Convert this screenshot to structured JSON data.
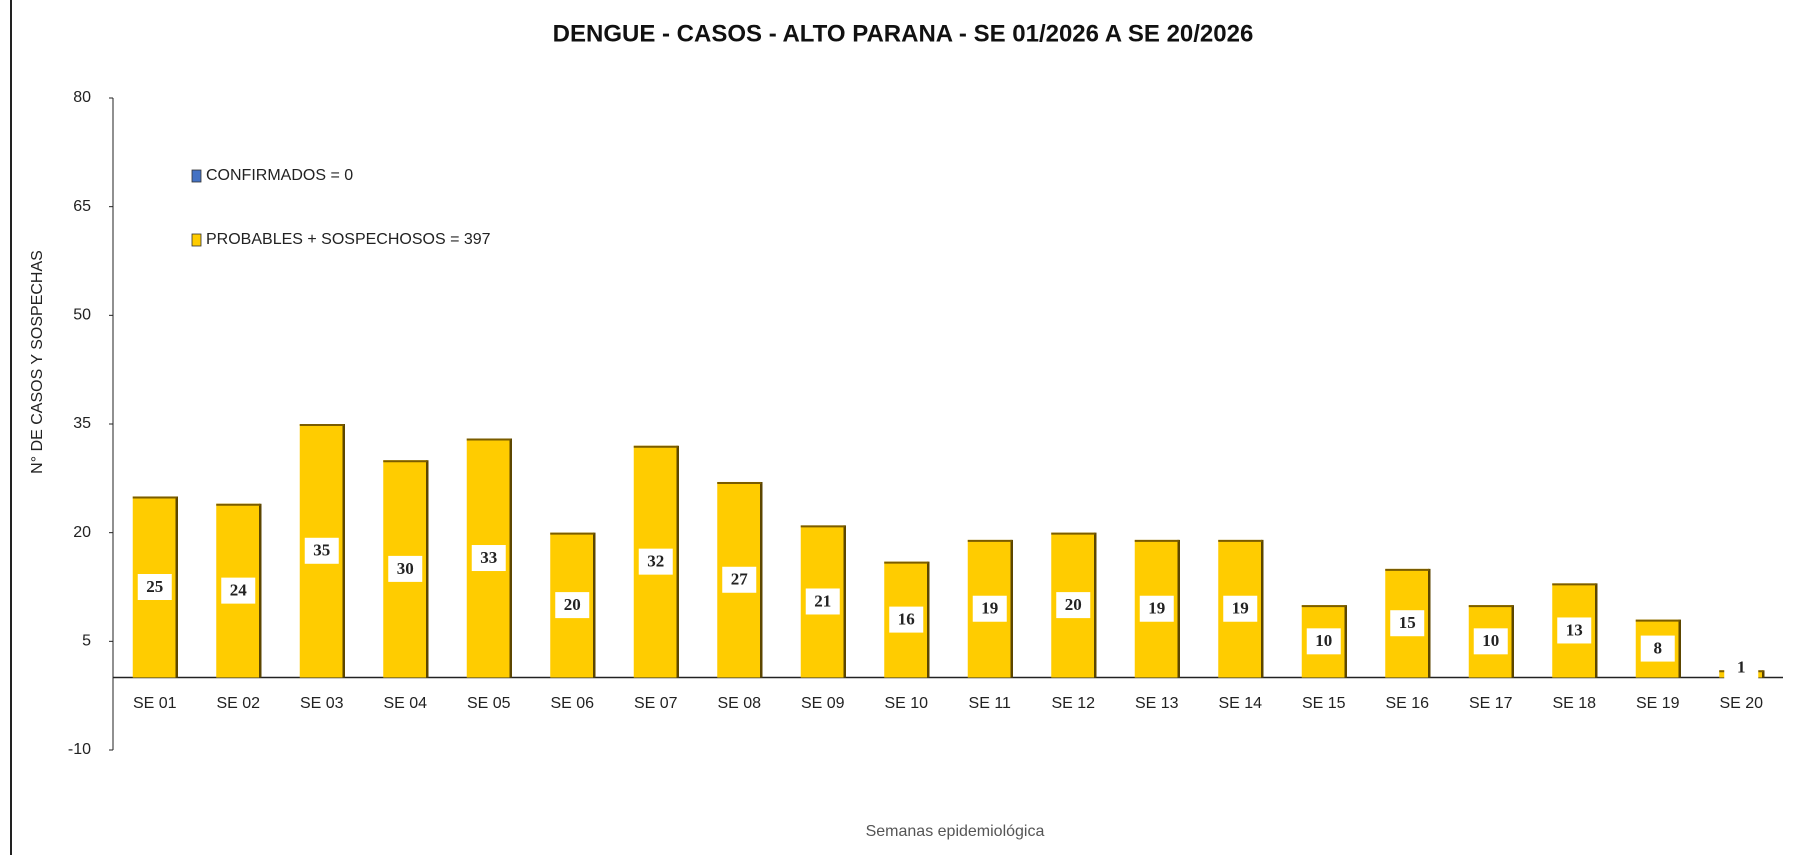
{
  "chart_data": {
    "type": "bar",
    "title": "DENGUE - CASOS - ALTO PARANA - SE 01/2026 A SE 20/2026",
    "y_label": "N° DE CASOS Y SOSPECHAS",
    "x_label": "Semanas epidemiológica",
    "categories": [
      "SE 01",
      "SE 02",
      "SE 03",
      "SE 04",
      "SE 05",
      "SE 06",
      "SE 07",
      "SE 08",
      "SE 09",
      "SE 10",
      "SE 11",
      "SE 12",
      "SE 13",
      "SE 14",
      "SE 15",
      "SE 16",
      "SE 17",
      "SE 18",
      "SE 19",
      "SE 20"
    ],
    "series": [
      {
        "name": "CONFIRMADOS = 0",
        "color": "#4472c4",
        "values": [
          0,
          0,
          0,
          0,
          0,
          0,
          0,
          0,
          0,
          0,
          0,
          0,
          0,
          0,
          0,
          0,
          0,
          0,
          0,
          0
        ]
      },
      {
        "name": "PROBABLES + SOSPECHOSOS = 397",
        "color": "#ffcc00",
        "values": [
          25,
          24,
          35,
          30,
          33,
          20,
          32,
          27,
          21,
          16,
          19,
          20,
          19,
          19,
          10,
          15,
          10,
          13,
          8,
          1
        ]
      }
    ],
    "ylim": [
      -10,
      80
    ],
    "yticks": [
      -10,
      5,
      20,
      35,
      50,
      65,
      80
    ],
    "grid": false
  }
}
